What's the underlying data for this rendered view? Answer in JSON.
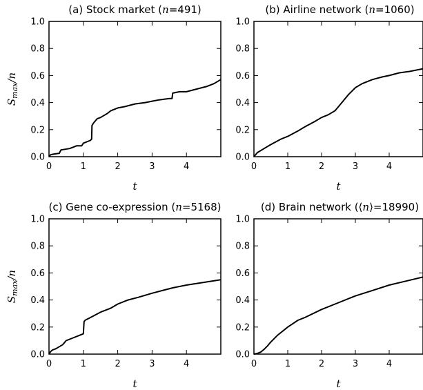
{
  "chart_data": [
    {
      "type": "line",
      "title": "(a) Stock market (n=491)",
      "xlabel": "t",
      "ylabel": "S_max/n",
      "xlim": [
        0,
        5
      ],
      "ylim": [
        0,
        1.0
      ],
      "xticks": [
        "0",
        "1",
        "2",
        "3",
        "4"
      ],
      "yticks": [
        "0.0",
        "0.2",
        "0.4",
        "0.6",
        "0.8",
        "1.0"
      ],
      "grid": false,
      "series": [
        {
          "x": [
            0,
            0.05,
            0.15,
            0.3,
            0.35,
            0.6,
            0.7,
            0.8,
            0.95,
            1.0,
            1.2,
            1.24,
            1.25,
            1.3,
            1.4,
            1.5,
            1.7,
            1.8,
            2.0,
            2.2,
            2.5,
            2.8,
            3.0,
            3.2,
            3.5,
            3.58,
            3.6,
            3.8,
            4.0,
            4.3,
            4.6,
            4.8,
            5.0
          ],
          "y": [
            0.0,
            0.015,
            0.02,
            0.025,
            0.05,
            0.06,
            0.07,
            0.08,
            0.08,
            0.1,
            0.12,
            0.13,
            0.23,
            0.25,
            0.28,
            0.29,
            0.32,
            0.34,
            0.36,
            0.37,
            0.39,
            0.4,
            0.41,
            0.42,
            0.43,
            0.43,
            0.47,
            0.48,
            0.48,
            0.5,
            0.52,
            0.54,
            0.57
          ]
        }
      ]
    },
    {
      "type": "line",
      "title": "(b) Airline network (n=1060)",
      "xlabel": "t",
      "ylabel": "",
      "xlim": [
        0,
        5
      ],
      "ylim": [
        0,
        1.0
      ],
      "xticks": [
        "0",
        "1",
        "2",
        "3",
        "4"
      ],
      "yticks": [
        "0.0",
        "0.2",
        "0.4",
        "0.6",
        "0.8",
        "1.0"
      ],
      "grid": false,
      "series": [
        {
          "x": [
            0,
            0.1,
            0.3,
            0.5,
            0.8,
            1.0,
            1.3,
            1.5,
            1.8,
            2.0,
            2.2,
            2.4,
            2.5,
            2.6,
            2.8,
            3.0,
            3.2,
            3.5,
            3.8,
            4.0,
            4.3,
            4.6,
            5.0
          ],
          "y": [
            0.0,
            0.03,
            0.06,
            0.09,
            0.13,
            0.15,
            0.19,
            0.22,
            0.26,
            0.29,
            0.31,
            0.34,
            0.37,
            0.4,
            0.46,
            0.51,
            0.54,
            0.57,
            0.59,
            0.6,
            0.62,
            0.63,
            0.65
          ]
        }
      ]
    },
    {
      "type": "line",
      "title": "(c) Gene co-expression (n=5168)",
      "xlabel": "t",
      "ylabel": "S_max/n",
      "xlim": [
        0,
        5
      ],
      "ylim": [
        0,
        1.0
      ],
      "xticks": [
        "0",
        "1",
        "2",
        "3",
        "4"
      ],
      "yticks": [
        "0.0",
        "0.2",
        "0.4",
        "0.6",
        "0.8",
        "1.0"
      ],
      "grid": false,
      "series": [
        {
          "x": [
            0,
            0.05,
            0.1,
            0.2,
            0.4,
            0.5,
            0.7,
            0.9,
            1.0,
            1.02,
            1.05,
            1.2,
            1.5,
            1.8,
            2.0,
            2.3,
            2.6,
            3.0,
            3.3,
            3.6,
            4.0,
            4.5,
            5.0
          ],
          "y": [
            0.0,
            0.02,
            0.03,
            0.04,
            0.07,
            0.1,
            0.12,
            0.14,
            0.15,
            0.24,
            0.25,
            0.27,
            0.31,
            0.34,
            0.37,
            0.4,
            0.42,
            0.45,
            0.47,
            0.49,
            0.51,
            0.53,
            0.55
          ]
        }
      ]
    },
    {
      "type": "line",
      "title": "(d) Brain network (⟨n⟩=18990)",
      "xlabel": "t",
      "ylabel": "",
      "xlim": [
        0,
        5
      ],
      "ylim": [
        0,
        1.0
      ],
      "xticks": [
        "0",
        "1",
        "2",
        "3",
        "4"
      ],
      "yticks": [
        "0.0",
        "0.2",
        "0.4",
        "0.6",
        "0.8",
        "1.0"
      ],
      "grid": false,
      "series": [
        {
          "x": [
            0,
            0.1,
            0.2,
            0.3,
            0.4,
            0.5,
            0.7,
            1.0,
            1.3,
            1.5,
            2.0,
            2.5,
            3.0,
            3.5,
            4.0,
            4.5,
            5.0
          ],
          "y": [
            0.0,
            0.005,
            0.015,
            0.035,
            0.06,
            0.09,
            0.14,
            0.2,
            0.25,
            0.27,
            0.33,
            0.38,
            0.43,
            0.47,
            0.51,
            0.54,
            0.57
          ]
        }
      ]
    }
  ]
}
